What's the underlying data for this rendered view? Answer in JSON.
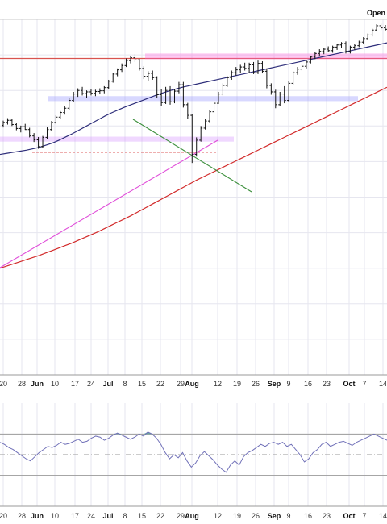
{
  "header": {
    "corner_label": "Open"
  },
  "chart_data": [
    {
      "type": "ohlc",
      "title": "",
      "panel": "price",
      "grid": true,
      "x_tick_labels": [
        {
          "label": "20",
          "bold": false
        },
        {
          "label": "28",
          "bold": false
        },
        {
          "label": "Jun",
          "bold": true
        },
        {
          "label": "10",
          "bold": false
        },
        {
          "label": "17",
          "bold": false
        },
        {
          "label": "24",
          "bold": false
        },
        {
          "label": "Jul",
          "bold": true
        },
        {
          "label": "8",
          "bold": false
        },
        {
          "label": "15",
          "bold": false
        },
        {
          "label": "22",
          "bold": false
        },
        {
          "label": "29",
          "bold": false
        },
        {
          "label": "Aug",
          "bold": true
        },
        {
          "label": "12",
          "bold": false
        },
        {
          "label": "19",
          "bold": false
        },
        {
          "label": "26",
          "bold": false
        },
        {
          "label": "Sep",
          "bold": true
        },
        {
          "label": "9",
          "bold": false
        },
        {
          "label": "16",
          "bold": false
        },
        {
          "label": "23",
          "bold": false
        },
        {
          "label": "Oct",
          "bold": true
        },
        {
          "label": "7",
          "bold": false
        },
        {
          "label": "14",
          "bold": false
        }
      ],
      "price_scale_range": [
        0,
        100
      ],
      "bars": [
        [
          70.2,
          71.5,
          69.6,
          71.0
        ],
        [
          71.0,
          72.2,
          70.4,
          71.6
        ],
        [
          71.6,
          72.0,
          70.0,
          70.4
        ],
        [
          70.4,
          70.9,
          68.8,
          69.3
        ],
        [
          69.3,
          70.1,
          68.2,
          69.8
        ],
        [
          69.8,
          70.6,
          68.9,
          69.0
        ],
        [
          69.0,
          69.5,
          66.8,
          67.2
        ],
        [
          67.2,
          68.0,
          65.5,
          66.1
        ],
        [
          66.1,
          66.9,
          63.6,
          64.2
        ],
        [
          64.2,
          67.2,
          63.9,
          66.8
        ],
        [
          66.8,
          69.6,
          66.4,
          69.0
        ],
        [
          69.0,
          71.4,
          68.6,
          71.0
        ],
        [
          71.0,
          73.0,
          70.6,
          72.5
        ],
        [
          72.5,
          74.2,
          72.0,
          73.8
        ],
        [
          73.8,
          75.6,
          73.2,
          75.0
        ],
        [
          75.0,
          77.8,
          74.6,
          77.2
        ],
        [
          77.2,
          79.6,
          76.8,
          79.0
        ],
        [
          79.0,
          80.6,
          78.2,
          80.0
        ],
        [
          80.0,
          81.0,
          78.6,
          79.1
        ],
        [
          79.1,
          80.0,
          78.0,
          79.6
        ],
        [
          79.6,
          80.4,
          78.6,
          79.2
        ],
        [
          79.2,
          80.2,
          78.4,
          79.7
        ],
        [
          79.7,
          80.6,
          78.9,
          79.9
        ],
        [
          79.9,
          81.2,
          79.2,
          80.8
        ],
        [
          80.8,
          83.0,
          80.4,
          82.6
        ],
        [
          82.6,
          85.0,
          82.2,
          84.6
        ],
        [
          84.6,
          86.2,
          84.0,
          85.8
        ],
        [
          85.8,
          87.6,
          85.2,
          87.0
        ],
        [
          87.0,
          89.0,
          86.6,
          88.4
        ],
        [
          88.4,
          89.8,
          87.6,
          89.2
        ],
        [
          89.2,
          90.2,
          88.0,
          88.6
        ],
        [
          88.6,
          88.9,
          85.6,
          86.2
        ],
        [
          86.2,
          86.8,
          83.2,
          84.0
        ],
        [
          84.0,
          85.4,
          82.6,
          84.8
        ],
        [
          84.8,
          85.6,
          83.0,
          83.6
        ],
        [
          83.6,
          84.0,
          78.0,
          78.8
        ],
        [
          78.8,
          80.4,
          75.6,
          76.6
        ],
        [
          76.6,
          81.0,
          76.2,
          80.0
        ],
        [
          80.0,
          81.2,
          76.0,
          76.8
        ],
        [
          76.8,
          80.4,
          76.4,
          79.8
        ],
        [
          79.8,
          82.4,
          79.2,
          81.6
        ],
        [
          81.6,
          82.4,
          75.2,
          76.0
        ],
        [
          76.0,
          76.5,
          72.0,
          73.0
        ],
        [
          73.0,
          73.4,
          59.6,
          62.0
        ],
        [
          62.0,
          66.8,
          61.4,
          66.0
        ],
        [
          66.0,
          70.0,
          65.6,
          69.4
        ],
        [
          69.4,
          72.0,
          69.0,
          71.4
        ],
        [
          71.4,
          74.6,
          71.0,
          74.0
        ],
        [
          74.0,
          76.8,
          73.8,
          76.4
        ],
        [
          76.4,
          79.6,
          76.2,
          79.0
        ],
        [
          79.0,
          82.0,
          78.6,
          81.4
        ],
        [
          81.4,
          84.0,
          81.0,
          83.6
        ],
        [
          83.6,
          85.6,
          83.0,
          85.0
        ],
        [
          85.0,
          86.6,
          84.2,
          85.8
        ],
        [
          85.8,
          87.2,
          85.0,
          86.6
        ],
        [
          86.6,
          87.8,
          85.6,
          86.2
        ],
        [
          86.2,
          87.8,
          85.0,
          87.2
        ],
        [
          87.2,
          88.0,
          84.6,
          85.0
        ],
        [
          85.0,
          88.4,
          84.6,
          87.6
        ],
        [
          87.6,
          88.2,
          84.8,
          85.4
        ],
        [
          85.4,
          86.2,
          80.6,
          81.4
        ],
        [
          81.4,
          82.0,
          78.8,
          79.6
        ],
        [
          79.6,
          80.2,
          75.0,
          76.0
        ],
        [
          76.0,
          79.6,
          75.6,
          79.0
        ],
        [
          79.0,
          81.2,
          76.4,
          77.2
        ],
        [
          77.2,
          82.6,
          76.8,
          82.0
        ],
        [
          82.0,
          85.4,
          81.6,
          85.0
        ],
        [
          85.0,
          86.6,
          84.4,
          86.0
        ],
        [
          86.0,
          87.4,
          85.4,
          86.8
        ],
        [
          86.8,
          88.6,
          86.2,
          88.0
        ],
        [
          88.0,
          89.8,
          87.6,
          89.4
        ],
        [
          89.4,
          90.8,
          88.8,
          90.4
        ],
        [
          90.4,
          91.6,
          89.6,
          91.0
        ],
        [
          91.0,
          92.0,
          90.2,
          91.6
        ],
        [
          91.6,
          92.4,
          90.8,
          91.2
        ],
        [
          91.2,
          92.6,
          90.6,
          92.2
        ],
        [
          92.2,
          93.2,
          91.4,
          92.8
        ],
        [
          92.8,
          93.6,
          92.0,
          93.2
        ],
        [
          93.2,
          93.8,
          90.4,
          91.0
        ],
        [
          91.0,
          92.6,
          90.4,
          92.2
        ],
        [
          92.2,
          93.0,
          91.4,
          92.6
        ],
        [
          92.6,
          94.0,
          92.2,
          93.6
        ],
        [
          93.6,
          95.0,
          93.2,
          94.6
        ],
        [
          94.6,
          96.0,
          94.2,
          95.6
        ],
        [
          95.6,
          97.4,
          95.2,
          97.0
        ],
        [
          97.0,
          98.6,
          96.6,
          98.2
        ],
        [
          98.2,
          98.8,
          97.0,
          97.6
        ],
        [
          97.6,
          98.4,
          96.8,
          97.2
        ]
      ],
      "moving_averages": [
        {
          "color": "#2e2e7a",
          "values": [
            62.0,
            62.3,
            62.6,
            62.9,
            63.2,
            63.6,
            64.0,
            64.6,
            65.2,
            66.0,
            66.9,
            67.8,
            68.8,
            69.8,
            70.8,
            71.8,
            72.8,
            73.7,
            74.5,
            75.3,
            76.0,
            76.7,
            77.4,
            78.1,
            78.8,
            79.4,
            80.0,
            80.5,
            81.0,
            81.4,
            81.8,
            82.2,
            82.6,
            83.0,
            83.4,
            83.8,
            84.2,
            84.6,
            85.0,
            85.4,
            85.8,
            86.2,
            86.6,
            87.0,
            87.4,
            87.8,
            88.2,
            88.6,
            89.0,
            89.4,
            89.8,
            90.2,
            90.6,
            91.0,
            91.4,
            91.8,
            92.2,
            92.6,
            93.0,
            93.4
          ]
        },
        {
          "color": "#d22a2a",
          "values": [
            30.0,
            30.6,
            31.2,
            31.8,
            32.4,
            33.0,
            33.6,
            34.3,
            35.0,
            35.7,
            36.4,
            37.1,
            37.9,
            38.7,
            39.5,
            40.3,
            41.2,
            42.1,
            43.0,
            43.9,
            44.8,
            45.8,
            46.8,
            47.8,
            48.8,
            49.8,
            50.8,
            51.8,
            52.8,
            53.8,
            54.8,
            55.7,
            56.6,
            57.5,
            58.4,
            59.3,
            60.2,
            61.1,
            62.0,
            62.9,
            63.8,
            64.7,
            65.6,
            66.5,
            67.4,
            68.3,
            69.2,
            70.1,
            71.0,
            71.9,
            72.8,
            73.7,
            74.6,
            75.5,
            76.4,
            77.3,
            78.2,
            79.1,
            80.0,
            80.9
          ]
        }
      ],
      "annotations": [
        {
          "type": "horizontal_line",
          "color": "#d9534f",
          "value": 89.0
        },
        {
          "type": "zone",
          "color": "#ff66dd",
          "value_low": 88.8,
          "value_high": 90.4
        },
        {
          "type": "zone",
          "color": "#8f8fff",
          "value_low": 77.0,
          "value_high": 78.4
        },
        {
          "type": "zone",
          "color": "#d58fff",
          "value_low": 65.6,
          "value_high": 67.0
        },
        {
          "type": "dashed_line",
          "color": "#d22a2a",
          "value": 62.6
        },
        {
          "type": "trend_line",
          "color": "#e04ed9"
        },
        {
          "type": "trend_line",
          "color": "#3c8f3c"
        }
      ]
    },
    {
      "type": "line",
      "panel": "indicator",
      "title": "",
      "ylim": [
        0,
        100
      ],
      "levels": [
        70,
        30
      ],
      "mid_level": 50,
      "line_color": "#7070b8",
      "overbought_fill": "#4e9d91",
      "values": [
        62,
        60,
        57,
        55,
        52,
        49,
        46,
        44,
        48,
        52,
        55,
        58,
        57,
        59,
        62,
        60,
        61,
        63,
        65,
        62,
        63,
        66,
        68,
        67,
        64,
        66,
        69,
        71,
        69,
        67,
        65,
        67,
        70,
        68,
        72,
        70,
        66,
        60,
        52,
        46,
        50,
        47,
        52,
        44,
        38,
        42,
        49,
        53,
        49,
        45,
        40,
        36,
        33,
        40,
        44,
        40,
        48,
        52,
        54,
        57,
        60,
        58,
        61,
        62,
        60,
        62,
        58,
        60,
        55,
        50,
        43,
        46,
        52,
        55,
        60,
        62,
        58,
        60,
        62,
        63,
        61,
        59,
        62,
        64,
        66,
        68,
        70,
        68,
        66,
        64
      ]
    }
  ]
}
